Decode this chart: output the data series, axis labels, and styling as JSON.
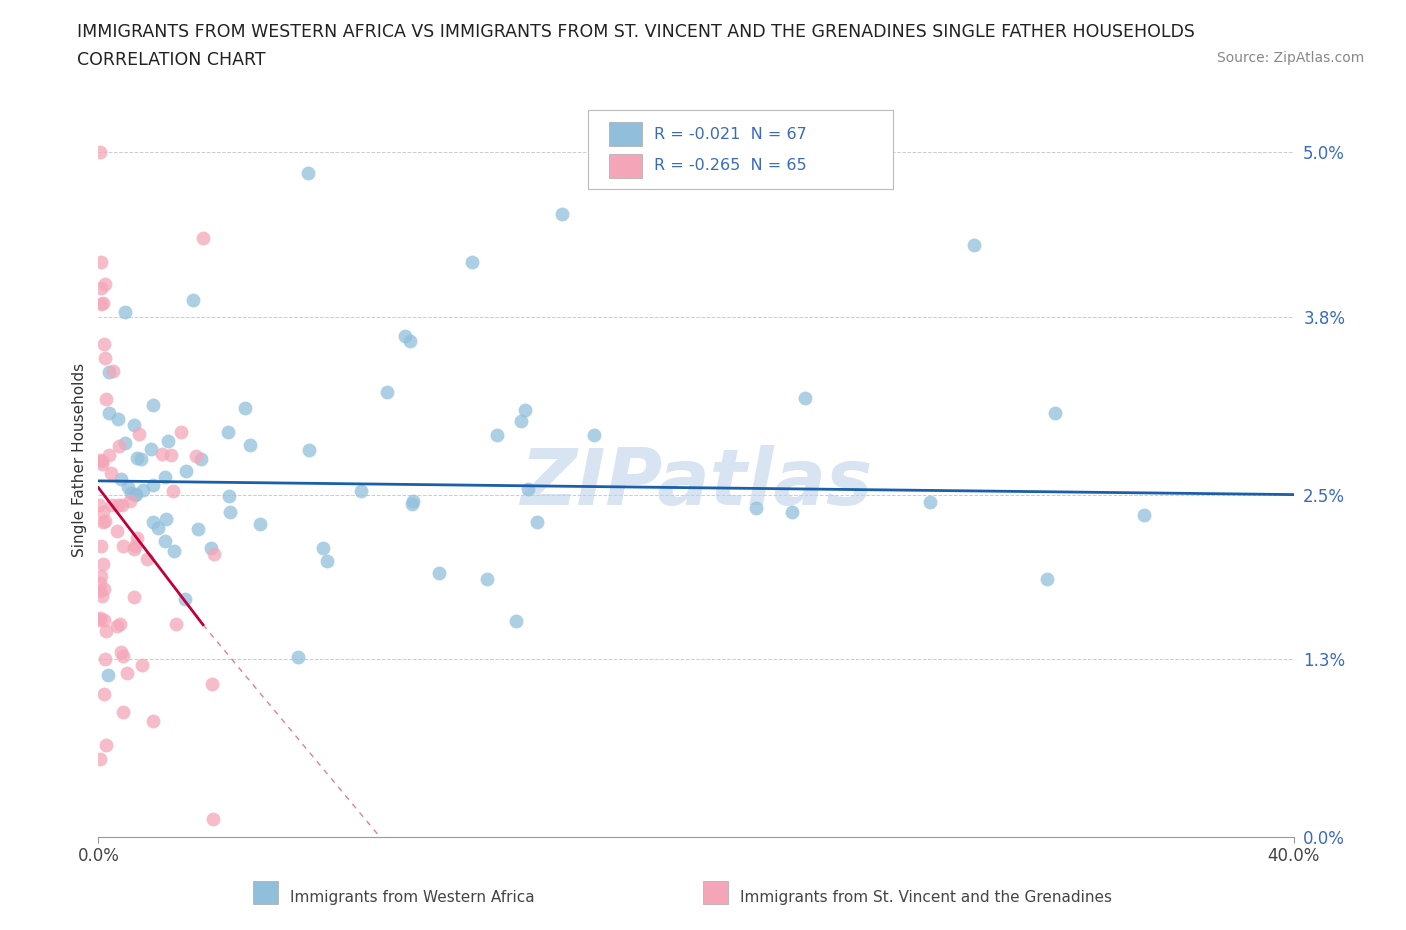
{
  "title_line1": "IMMIGRANTS FROM WESTERN AFRICA VS IMMIGRANTS FROM ST. VINCENT AND THE GRENADINES SINGLE FATHER HOUSEHOLDS",
  "title_line2": "CORRELATION CHART",
  "source": "Source: ZipAtlas.com",
  "ylabel": "Single Father Households",
  "ytick_values": [
    0.0,
    1.3,
    2.5,
    3.8,
    5.0
  ],
  "ytick_labels": [
    "0.0%",
    "1.3%",
    "2.5%",
    "3.8%",
    "5.0%"
  ],
  "xlim": [
    0.0,
    40.0
  ],
  "ylim": [
    0.0,
    5.5
  ],
  "color_blue": "#91bfdb",
  "color_pink": "#f4a6b8",
  "color_blue_line": "#1a5fa8",
  "color_pink_line": "#c0003c",
  "watermark": "ZIPatlas",
  "legend_text1": "R = -0.021  N = 67",
  "legend_text2": "R = -0.265  N = 65"
}
